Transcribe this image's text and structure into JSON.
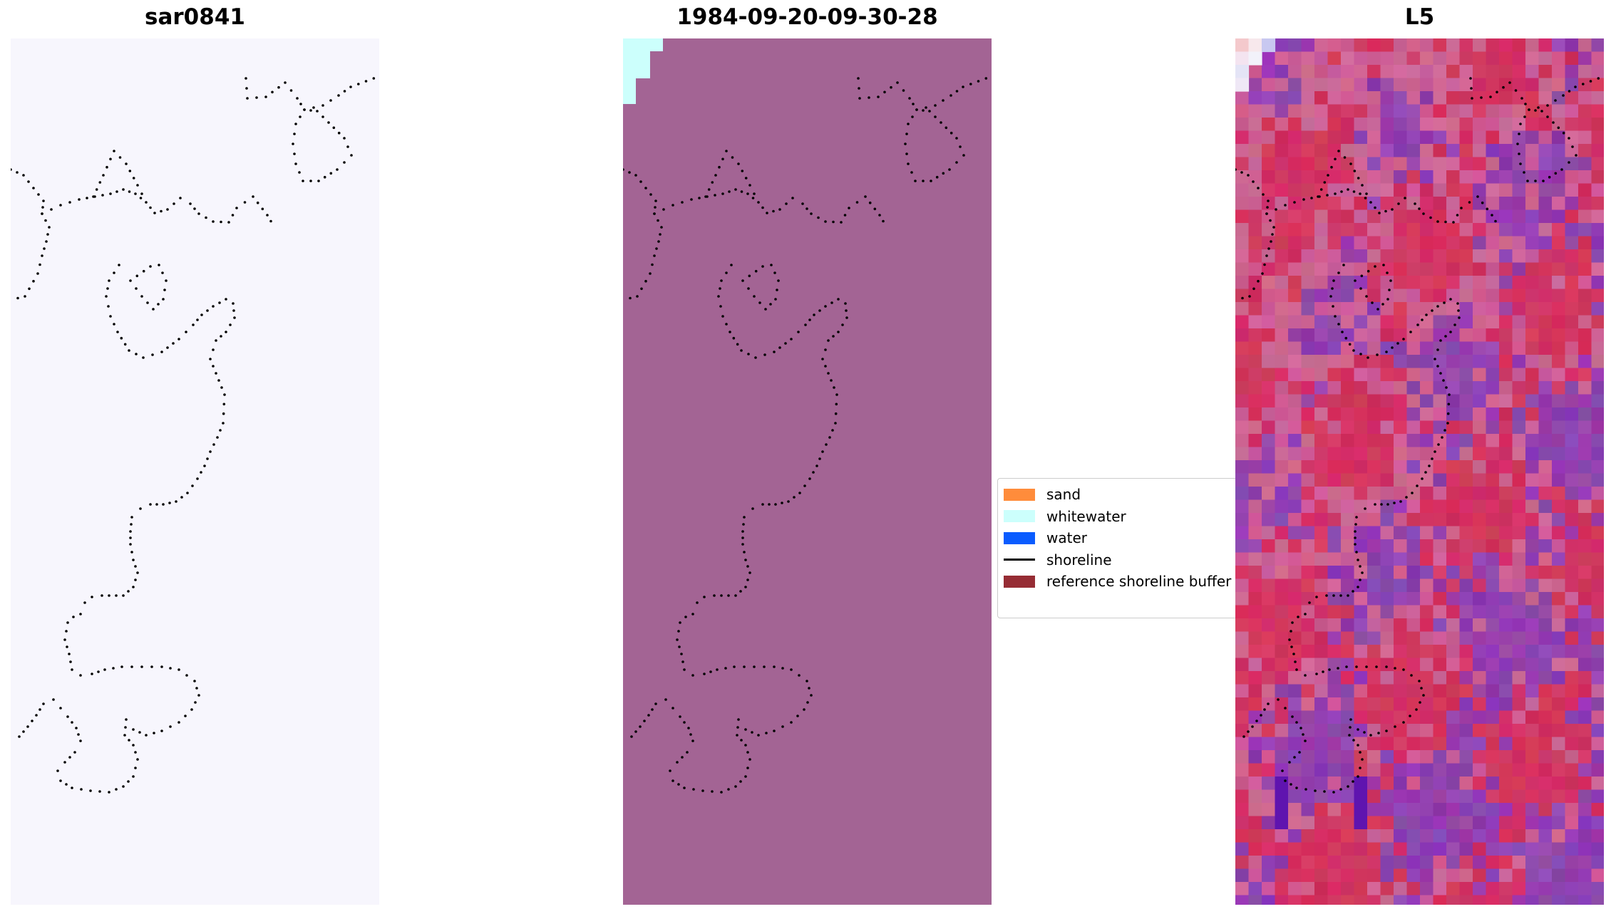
{
  "panels": {
    "left": {
      "title": "sar0841",
      "background": "#f7f6fd"
    },
    "middle": {
      "title": "1984-09-20-09-30-28",
      "background": "#a36494",
      "whitewater_color": "#ccfffc"
    },
    "right": {
      "title": "L5"
    }
  },
  "legend": {
    "items": [
      {
        "label": "sand",
        "kind": "swatch",
        "color": "#ff8c3b"
      },
      {
        "label": "whitewater",
        "kind": "swatch",
        "color": "#ccfffc"
      },
      {
        "label": "water",
        "kind": "swatch",
        "color": "#0a5cff"
      },
      {
        "label": "shoreline",
        "kind": "line",
        "color": "#000000"
      },
      {
        "label": "reference shoreline buffer",
        "kind": "swatch",
        "color": "#962c34"
      }
    ]
  },
  "colors": {
    "shoreline_dots": "#000000",
    "heat_red": "#c81e50",
    "heat_pink": "#c85a8c",
    "heat_purple": "#823ca0"
  }
}
